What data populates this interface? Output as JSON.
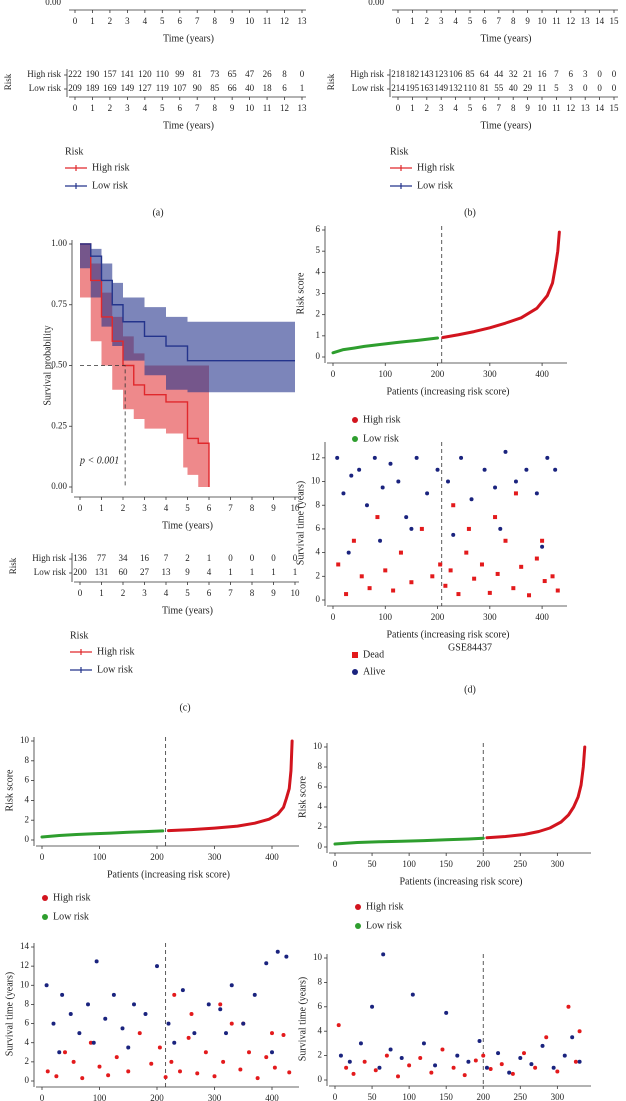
{
  "chart_data": [
    {
      "type": "axis",
      "xlim": [
        0,
        13
      ],
      "xticks": [
        0,
        1,
        2,
        3,
        4,
        5,
        6,
        7,
        8,
        9,
        10,
        11,
        12,
        13
      ],
      "yticks": [
        {
          "value": 0,
          "label": "0.00"
        }
      ],
      "x_label": "Time (years)"
    },
    {
      "type": "table",
      "row_title": "Risk",
      "xlim": [
        0,
        13
      ],
      "xticks": [
        0,
        1,
        2,
        3,
        4,
        5,
        6,
        7,
        8,
        9,
        10,
        11,
        12,
        13
      ],
      "x_label": "Time (years)",
      "legend_title": "Risk",
      "caption": "(a)",
      "series": [
        {
          "name": "High risk",
          "color": "#e0282c",
          "values": [
            222,
            190,
            157,
            141,
            120,
            110,
            99,
            81,
            73,
            65,
            47,
            26,
            8,
            0
          ]
        },
        {
          "name": "Low risk",
          "color": "#24348c",
          "values": [
            209,
            189,
            169,
            149,
            127,
            119,
            107,
            90,
            85,
            66,
            40,
            18,
            6,
            1
          ]
        }
      ]
    },
    {
      "type": "axis",
      "xlim": [
        0,
        15
      ],
      "xticks": [
        0,
        1,
        2,
        3,
        4,
        5,
        6,
        7,
        8,
        9,
        10,
        11,
        12,
        13,
        14,
        15
      ],
      "yticks": [
        {
          "value": 0,
          "label": "0.00"
        }
      ],
      "x_label": "Time (years)"
    },
    {
      "type": "table",
      "row_title": "Risk",
      "xlim": [
        0,
        15
      ],
      "xticks": [
        0,
        1,
        2,
        3,
        4,
        5,
        6,
        7,
        8,
        9,
        10,
        11,
        12,
        13,
        14,
        15
      ],
      "x_label": "Time (years)",
      "legend_title": "Risk",
      "caption": "(b)",
      "series": [
        {
          "name": "High risk",
          "color": "#e0282c",
          "values": [
            218,
            182,
            143,
            123,
            106,
            85,
            64,
            44,
            32,
            21,
            16,
            7,
            6,
            3,
            0,
            0
          ]
        },
        {
          "name": "Low risk",
          "color": "#24348c",
          "values": [
            214,
            195,
            163,
            149,
            132,
            110,
            81,
            55,
            40,
            29,
            11,
            5,
            3,
            0,
            0,
            0
          ]
        }
      ]
    },
    {
      "type": "km",
      "xlim": [
        0,
        10
      ],
      "xticks": [
        0,
        1,
        2,
        3,
        4,
        5,
        6,
        7,
        8,
        9,
        10
      ],
      "ylim": [
        0,
        1
      ],
      "yticks": [
        {
          "value": 0,
          "label": "0.00"
        },
        {
          "value": 0.25,
          "label": "0.25"
        },
        {
          "value": 0.5,
          "label": "0.50"
        },
        {
          "value": 0.75,
          "label": "0.75"
        },
        {
          "value": 1,
          "label": "1.00"
        }
      ],
      "x_label": "Time (years)",
      "y_label": "Survival probability",
      "annotation": "p < 0.001",
      "median": {
        "x": 2.1,
        "y": 0.5
      },
      "series": [
        {
          "name": "High risk",
          "color": "#e0282c",
          "x": [
            0,
            0.5,
            1,
            1.5,
            2,
            2.5,
            3,
            4,
            4.8,
            5,
            5.5,
            6
          ],
          "values": [
            1,
            0.85,
            0.7,
            0.6,
            0.5,
            0.42,
            0.38,
            0.35,
            0.35,
            0.2,
            0.18,
            0
          ],
          "ci_lower": [
            1,
            0.78,
            0.6,
            0.5,
            0.4,
            0.32,
            0.28,
            0.24,
            0.22,
            0.08,
            0.05,
            0
          ],
          "ci_upper": [
            1,
            0.92,
            0.8,
            0.7,
            0.62,
            0.55,
            0.5,
            0.5,
            0.5,
            0.5,
            0.5,
            0.5
          ]
        },
        {
          "name": "Low risk",
          "color": "#24348c",
          "x": [
            0,
            0.5,
            1,
            1.5,
            2,
            3,
            4,
            5,
            6,
            10
          ],
          "values": [
            1,
            0.95,
            0.85,
            0.75,
            0.68,
            0.62,
            0.58,
            0.52,
            0.52,
            0.52
          ],
          "ci_lower": [
            1,
            0.9,
            0.78,
            0.66,
            0.58,
            0.52,
            0.46,
            0.4,
            0.39,
            0.39
          ],
          "ci_upper": [
            1,
            0.98,
            0.92,
            0.84,
            0.78,
            0.74,
            0.7,
            0.68,
            0.68,
            0.68
          ]
        }
      ]
    },
    {
      "type": "table",
      "row_title": "Risk",
      "xlim": [
        0,
        10
      ],
      "xticks": [
        0,
        1,
        2,
        3,
        4,
        5,
        6,
        7,
        8,
        9,
        10
      ],
      "x_label": "Time (years)",
      "legend_title": "Risk",
      "caption": "(c)",
      "series": [
        {
          "name": "High risk",
          "color": "#e0282c",
          "values": [
            136,
            77,
            34,
            16,
            7,
            2,
            1,
            0,
            0,
            0,
            0
          ]
        },
        {
          "name": "Low risk",
          "color": "#24348c",
          "values": [
            200,
            131,
            60,
            27,
            13,
            9,
            4,
            1,
            1,
            1,
            1
          ]
        }
      ]
    },
    {
      "type": "line",
      "xlim": [
        0,
        440
      ],
      "xticks": [
        0,
        100,
        200,
        300,
        400
      ],
      "ylim": [
        0,
        6
      ],
      "yticks": [
        0,
        1,
        2,
        3,
        4,
        5,
        6
      ],
      "cutoff": 208,
      "x_label": "Patients (increasing risk score)",
      "y_label": "Risk score",
      "series": [
        {
          "name": "High risk",
          "color": "#d2141e",
          "x": [
            210,
            240,
            270,
            300,
            330,
            360,
            390,
            410,
            420,
            425,
            430,
            433
          ],
          "values": [
            0.92,
            1.05,
            1.2,
            1.38,
            1.6,
            1.85,
            2.3,
            2.9,
            3.5,
            4.2,
            5.0,
            5.9
          ]
        },
        {
          "name": "Low risk",
          "color": "#2e9e2e",
          "x": [
            0,
            20,
            40,
            60,
            80,
            100,
            120,
            140,
            160,
            180,
            200
          ],
          "values": [
            0.2,
            0.35,
            0.42,
            0.5,
            0.56,
            0.62,
            0.68,
            0.73,
            0.78,
            0.84,
            0.9
          ]
        }
      ]
    },
    {
      "type": "scatter",
      "xlim": [
        0,
        440
      ],
      "xticks": [
        0,
        100,
        200,
        300,
        400
      ],
      "ylim": [
        0,
        13
      ],
      "yticks": [
        0,
        2,
        4,
        6,
        8,
        10,
        12
      ],
      "cutoff": 208,
      "x_label": "Patients (increasing risk score)",
      "y_label": "Survival time (years)",
      "subtitle": "GSE84437",
      "caption": "(d)",
      "series": [
        {
          "name": "Dead",
          "color": "#e31a1c",
          "marker": "square",
          "x": [
            10,
            25,
            40,
            55,
            70,
            85,
            100,
            115,
            130,
            150,
            170,
            190,
            205,
            215,
            225,
            240,
            255,
            270,
            285,
            300,
            315,
            330,
            345,
            360,
            375,
            390,
            405,
            420,
            430,
            230,
            260,
            310,
            350,
            400
          ],
          "values": [
            3,
            0.5,
            5,
            2,
            1,
            7,
            2.5,
            0.8,
            4,
            1.5,
            6,
            2,
            3,
            1.2,
            2.5,
            0.5,
            4,
            1.8,
            3,
            0.6,
            2.2,
            5,
            1,
            2.8,
            0.4,
            3.5,
            1.6,
            2,
            0.8,
            8,
            6,
            7,
            9,
            5
          ]
        },
        {
          "name": "Alive",
          "color": "#1a237e",
          "marker": "circle",
          "x": [
            8,
            20,
            35,
            50,
            65,
            80,
            95,
            110,
            125,
            140,
            160,
            180,
            200,
            220,
            245,
            265,
            290,
            310,
            330,
            350,
            370,
            390,
            410,
            425,
            30,
            90,
            150,
            230,
            320,
            400
          ],
          "values": [
            12,
            9,
            10.5,
            11,
            8,
            12,
            9.5,
            11.5,
            10,
            7,
            12,
            9,
            11,
            10,
            12,
            8.5,
            11,
            9.5,
            12.5,
            10,
            11,
            9,
            12,
            11,
            4,
            5,
            6,
            5.5,
            6,
            4.5
          ]
        }
      ]
    },
    {
      "type": "line",
      "xlim": [
        0,
        440
      ],
      "xticks": [
        0,
        100,
        200,
        300,
        400
      ],
      "ylim": [
        0,
        10
      ],
      "yticks": [
        0,
        2,
        4,
        6,
        8,
        10
      ],
      "cutoff": 215,
      "x_label": "Patients (increasing risk score)",
      "y_label": "Risk score",
      "series": [
        {
          "name": "High risk",
          "color": "#d2141e",
          "x": [
            220,
            260,
            300,
            340,
            370,
            395,
            410,
            420,
            425,
            430,
            433,
            435
          ],
          "values": [
            0.95,
            1.05,
            1.2,
            1.4,
            1.7,
            2.1,
            2.6,
            3.3,
            4.2,
            5.2,
            7,
            10
          ]
        },
        {
          "name": "Low risk",
          "color": "#2e9e2e",
          "x": [
            0,
            30,
            60,
            90,
            120,
            150,
            180,
            210
          ],
          "values": [
            0.3,
            0.45,
            0.55,
            0.63,
            0.7,
            0.78,
            0.85,
            0.92
          ]
        }
      ]
    },
    {
      "type": "scatter",
      "xlim": [
        0,
        440
      ],
      "xticks": [
        0,
        100,
        200,
        300,
        400
      ],
      "ylim": [
        0,
        14
      ],
      "yticks": [
        0,
        2,
        4,
        6,
        8,
        10,
        12,
        14
      ],
      "cutoff": 215,
      "y_label": "Survival time (years)",
      "series": [
        {
          "name": "Dead",
          "color": "#e31a1c",
          "marker": "circle",
          "x": [
            10,
            25,
            40,
            55,
            70,
            85,
            100,
            115,
            130,
            150,
            170,
            190,
            205,
            215,
            225,
            240,
            255,
            270,
            285,
            300,
            315,
            330,
            345,
            360,
            375,
            390,
            405,
            420,
            430,
            230,
            260,
            310,
            350,
            400
          ],
          "values": [
            1,
            0.5,
            3,
            2,
            0.3,
            4,
            1.5,
            0.6,
            2.5,
            1,
            5,
            1.8,
            3.5,
            0.4,
            2,
            1,
            4.5,
            0.8,
            3,
            0.5,
            2,
            6,
            1.2,
            3,
            0.3,
            2.5,
            1.4,
            4.8,
            0.9,
            9,
            7,
            8,
            6,
            5
          ]
        },
        {
          "name": "Alive",
          "color": "#1a237e",
          "marker": "circle",
          "x": [
            8,
            20,
            35,
            50,
            65,
            80,
            95,
            110,
            125,
            140,
            160,
            180,
            200,
            220,
            245,
            265,
            290,
            310,
            330,
            350,
            370,
            390,
            410,
            425,
            30,
            90,
            150,
            230,
            320,
            400
          ],
          "values": [
            10,
            6,
            9,
            7,
            5,
            8,
            12.5,
            6.5,
            9,
            5.5,
            8,
            7,
            12,
            6,
            9.5,
            5,
            8,
            7.5,
            10,
            6,
            9,
            12.3,
            13.5,
            13,
            3,
            4,
            3.5,
            4,
            5,
            3
          ]
        }
      ]
    },
    {
      "type": "line",
      "xlim": [
        0,
        340
      ],
      "xticks": [
        0,
        50,
        100,
        150,
        200,
        250,
        300
      ],
      "ylim": [
        0,
        10
      ],
      "yticks": [
        0,
        2,
        4,
        6,
        8,
        10
      ],
      "cutoff": 200,
      "x_label": "Patients (increasing risk score)",
      "y_label": "Risk score",
      "series": [
        {
          "name": "High risk",
          "color": "#d2141e",
          "x": [
            205,
            230,
            255,
            275,
            290,
            305,
            315,
            322,
            328,
            332,
            335,
            337
          ],
          "values": [
            0.92,
            1.05,
            1.25,
            1.55,
            1.9,
            2.5,
            3.2,
            4,
            5,
            6.2,
            8,
            10
          ]
        },
        {
          "name": "Low risk",
          "color": "#2e9e2e",
          "x": [
            0,
            30,
            60,
            90,
            120,
            150,
            180,
            200
          ],
          "values": [
            0.3,
            0.45,
            0.52,
            0.58,
            0.64,
            0.72,
            0.8,
            0.88
          ]
        }
      ]
    },
    {
      "type": "scatter",
      "xlim": [
        0,
        340
      ],
      "xticks": [
        0,
        50,
        100,
        150,
        200,
        250,
        300
      ],
      "ylim": [
        0,
        10
      ],
      "yticks": [
        0,
        2,
        4,
        6,
        8,
        10
      ],
      "cutoff": 200,
      "y_label": "Survival time (years)",
      "series": [
        {
          "name": "Dead",
          "color": "#e31a1c",
          "marker": "circle",
          "x": [
            5,
            15,
            25,
            40,
            55,
            70,
            85,
            100,
            115,
            130,
            145,
            160,
            175,
            190,
            200,
            210,
            225,
            240,
            255,
            270,
            285,
            300,
            315,
            325,
            330
          ],
          "values": [
            4.5,
            1,
            0.5,
            1.5,
            0.8,
            2,
            0.3,
            1.2,
            1.8,
            0.6,
            2.5,
            1,
            0.4,
            1.6,
            2,
            0.9,
            1.3,
            0.5,
            2.2,
            1,
            3.5,
            0.7,
            6,
            1.5,
            4
          ]
        },
        {
          "name": "Alive",
          "color": "#1a237e",
          "marker": "circle",
          "x": [
            8,
            20,
            35,
            50,
            60,
            75,
            90,
            105,
            120,
            135,
            150,
            165,
            180,
            195,
            205,
            220,
            235,
            250,
            265,
            280,
            295,
            310,
            320,
            330,
            65
          ],
          "values": [
            2,
            1.5,
            3,
            6,
            1,
            2.5,
            1.8,
            7,
            3,
            1.2,
            5.5,
            2,
            1.5,
            3.2,
            1,
            2.2,
            0.6,
            1.8,
            1.3,
            2.8,
            1,
            2,
            3.5,
            1.5,
            10.3
          ]
        }
      ]
    }
  ]
}
